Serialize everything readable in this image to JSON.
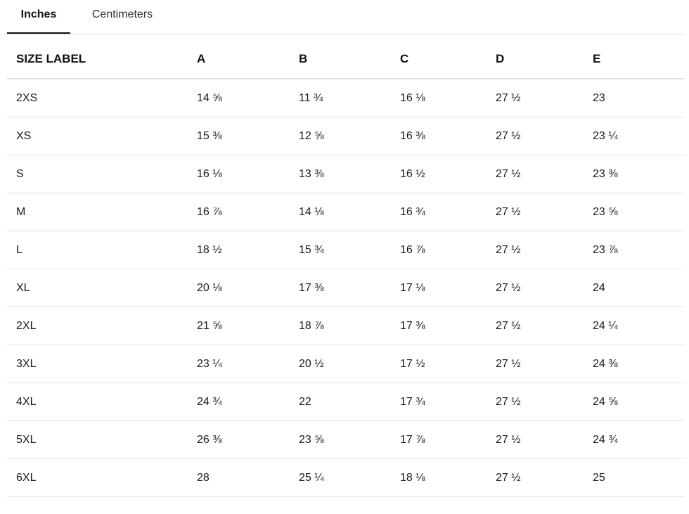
{
  "tabs": [
    {
      "label": "Inches",
      "active": true
    },
    {
      "label": "Centimeters",
      "active": false
    }
  ],
  "table": {
    "headers": [
      "SIZE LABEL",
      "A",
      "B",
      "C",
      "D",
      "E"
    ],
    "rows": [
      [
        "2XS",
        "14 ⅝",
        "11 ¾",
        "16 ⅛",
        "27 ½",
        "23"
      ],
      [
        "XS",
        "15 ⅜",
        "12 ⅝",
        "16 ⅜",
        "27 ½",
        "23 ¼"
      ],
      [
        "S",
        "16 ⅛",
        "13 ⅜",
        "16 ½",
        "27 ½",
        "23 ⅜"
      ],
      [
        "M",
        "16 ⅞",
        "14 ⅛",
        "16 ¾",
        "27 ½",
        "23 ⅝"
      ],
      [
        "L",
        "18 ½",
        "15 ¾",
        "16 ⅞",
        "27 ½",
        "23 ⅞"
      ],
      [
        "XL",
        "20 ⅛",
        "17 ⅜",
        "17 ⅛",
        "27 ½",
        "24"
      ],
      [
        "2XL",
        "21 ⅝",
        "18 ⅞",
        "17 ⅜",
        "27 ½",
        "24 ¼"
      ],
      [
        "3XL",
        "23 ¼",
        "20 ½",
        "17 ½",
        "27 ½",
        "24 ⅜"
      ],
      [
        "4XL",
        "24 ¾",
        "22",
        "17 ¾",
        "27 ½",
        "24 ⅝"
      ],
      [
        "5XL",
        "26 ⅜",
        "23 ⅝",
        "17 ⅞",
        "27 ½",
        "24 ¾"
      ],
      [
        "6XL",
        "28",
        "25 ¼",
        "18 ⅛",
        "27 ½",
        "25"
      ]
    ]
  }
}
